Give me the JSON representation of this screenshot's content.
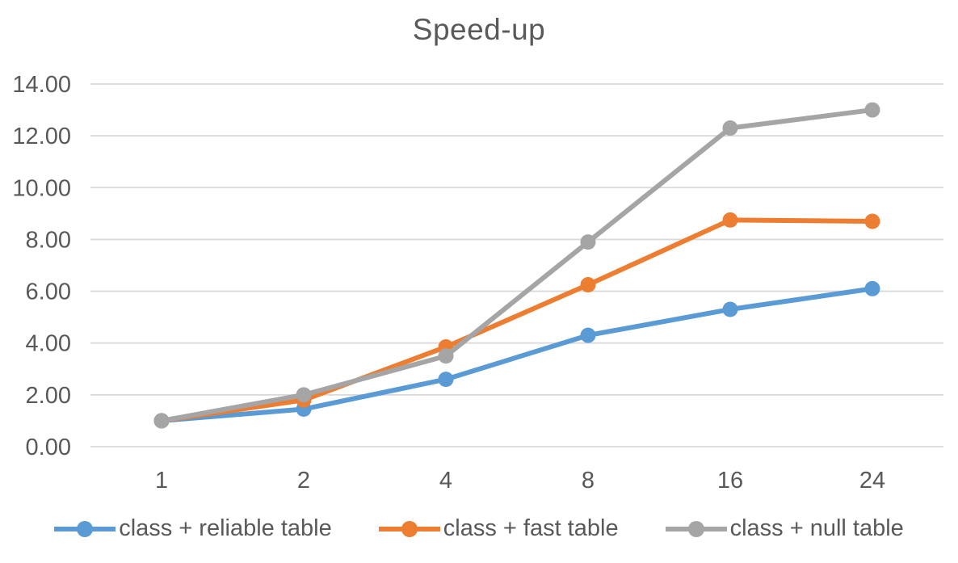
{
  "chart_data": {
    "type": "line",
    "title": "Speed-up",
    "categories": [
      "1",
      "2",
      "4",
      "8",
      "16",
      "24"
    ],
    "series": [
      {
        "name": "class + reliable table",
        "color": "#5B9BD5",
        "values": [
          1.0,
          1.45,
          2.6,
          4.3,
          5.3,
          6.1
        ]
      },
      {
        "name": "class + fast table",
        "color": "#ED7D31",
        "values": [
          1.0,
          1.8,
          3.85,
          6.25,
          8.75,
          8.7
        ]
      },
      {
        "name": "class + null table",
        "color": "#A5A5A5",
        "values": [
          1.0,
          2.0,
          3.5,
          7.9,
          12.3,
          13.0
        ]
      }
    ],
    "y_axis": {
      "min": 0,
      "max": 14,
      "step": 2,
      "tick_labels": [
        "0.00",
        "2.00",
        "4.00",
        "6.00",
        "8.00",
        "10.00",
        "12.00",
        "14.00"
      ]
    },
    "x_axis": {
      "tick_labels": [
        "1",
        "2",
        "4",
        "8",
        "16",
        "24"
      ]
    },
    "grid": "horizontal-only",
    "legend_position": "bottom",
    "styles": {
      "gridline_color": "#D9D9D9",
      "text_color": "#595959",
      "background_color": "#FFFFFF"
    }
  }
}
